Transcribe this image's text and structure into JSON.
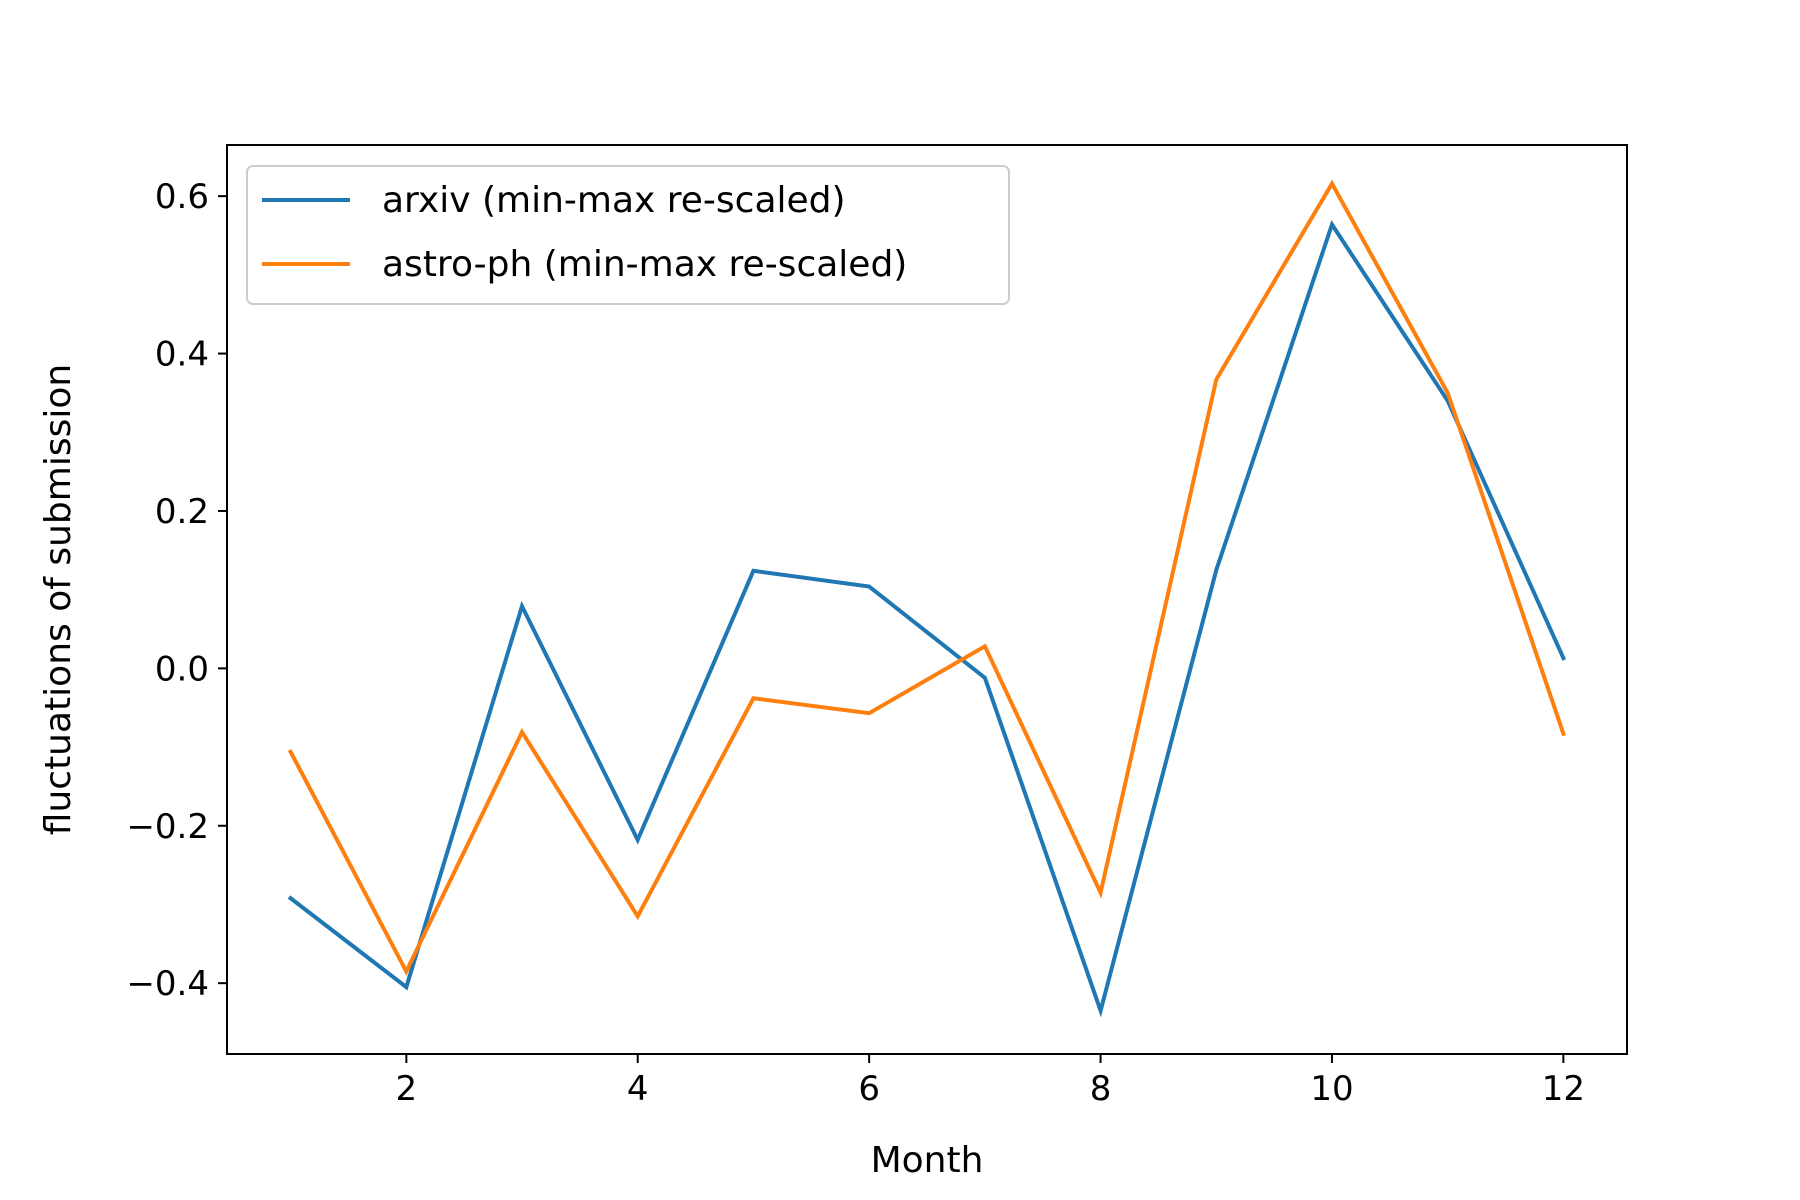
{
  "chart_data": {
    "type": "line",
    "title": "",
    "xlabel": "Month",
    "ylabel": "fluctuations of submission",
    "xlim": [
      0.45,
      12.55
    ],
    "ylim": [
      -0.49,
      0.665
    ],
    "xticks": [
      2,
      4,
      6,
      8,
      10,
      12
    ],
    "xtick_labels": [
      "2",
      "4",
      "6",
      "8",
      "10",
      "12"
    ],
    "yticks": [
      -0.4,
      -0.2,
      0.0,
      0.2,
      0.4,
      0.6
    ],
    "ytick_labels": [
      "−0.4",
      "−0.2",
      "0.0",
      "0.2",
      "0.4",
      "0.6"
    ],
    "grid": false,
    "legend": {
      "placement": "top-left"
    },
    "x": [
      1,
      2,
      3,
      4,
      5,
      6,
      7,
      8,
      9,
      10,
      11,
      12
    ],
    "series": [
      {
        "name": "arxiv (min-max re-scaled)",
        "color": "#1f77b4",
        "values": [
          -0.292,
          -0.405,
          0.079,
          -0.218,
          0.124,
          0.104,
          -0.012,
          -0.435,
          0.125,
          0.564,
          0.34,
          0.013
        ]
      },
      {
        "name": "astro-ph (min-max re-scaled)",
        "color": "#ff7f0e",
        "values": [
          -0.106,
          -0.385,
          -0.081,
          -0.315,
          -0.038,
          -0.057,
          0.028,
          -0.285,
          0.367,
          0.616,
          0.35,
          -0.083
        ]
      }
    ]
  }
}
